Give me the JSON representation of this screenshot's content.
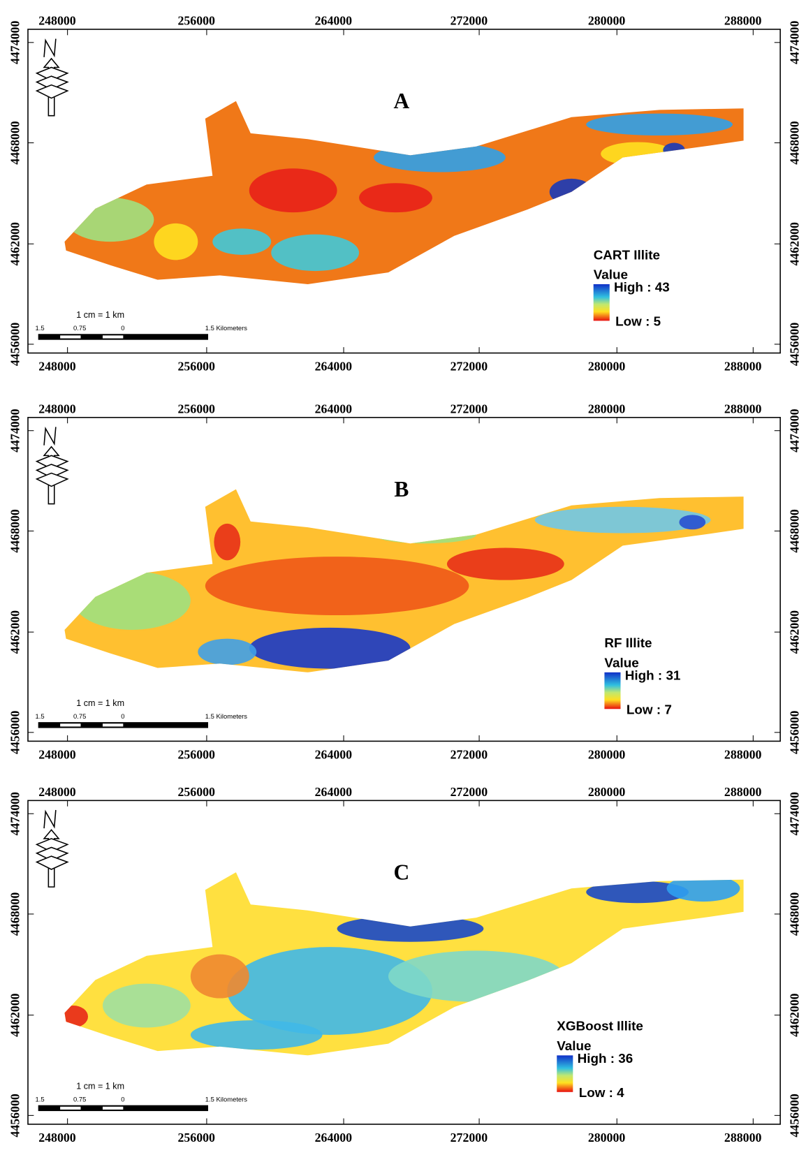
{
  "panels": [
    {
      "letter": "A",
      "legend_title": "CART Illite",
      "legend_value": "Value",
      "legend_high": "High : 43",
      "legend_low": "Low : 5"
    },
    {
      "letter": "B",
      "legend_title": "RF Illite",
      "legend_value": "Value",
      "legend_high": "High : 31",
      "legend_low": "Low : 7"
    },
    {
      "letter": "C",
      "legend_title": "XGBoost Illite",
      "legend_value": "Value",
      "legend_high": "High : 36",
      "legend_low": "Low : 4"
    }
  ],
  "x_ticks": [
    248000,
    256000,
    264000,
    272000,
    280000,
    288000
  ],
  "y_ticks": [
    4474000,
    4468000,
    4462000,
    4456000
  ],
  "scale_bar": {
    "ratio": "1 cm = 1 km",
    "labels": [
      "1.5",
      "0.75",
      "0",
      "1.5 Kilometers"
    ]
  }
}
